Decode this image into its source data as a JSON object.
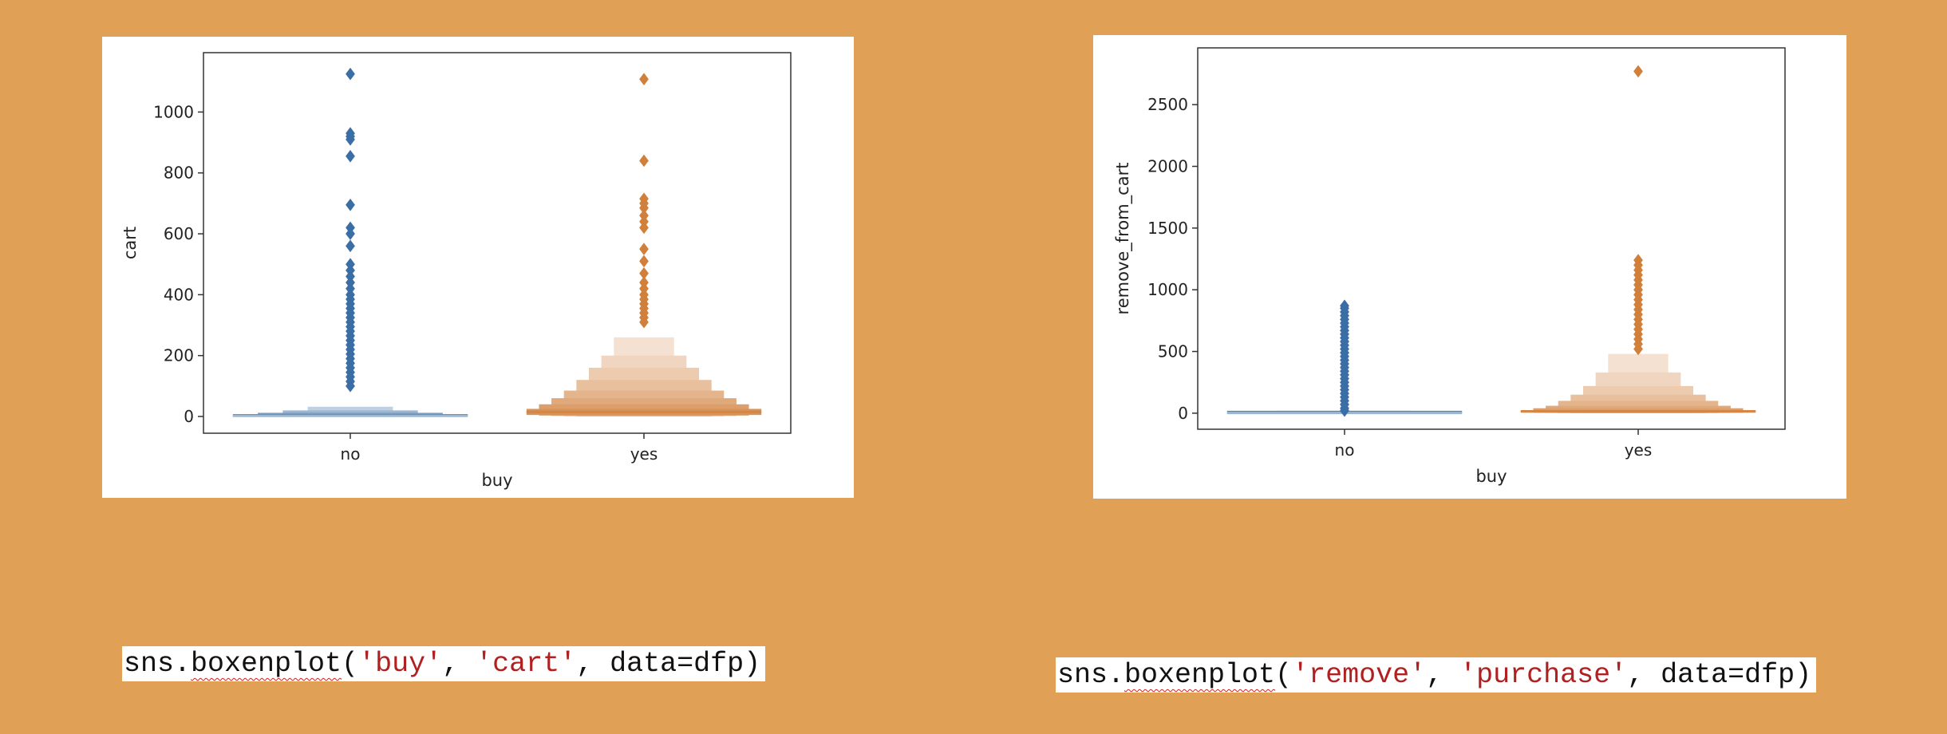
{
  "colors": {
    "background": "#E0A055",
    "no_series": "#3A6EA5",
    "yes_series": "#D1803C",
    "code_string": "#b02020",
    "spellcheck": "#d02020"
  },
  "chart_data": [
    {
      "type": "boxen",
      "xlabel": "buy",
      "ylabel": "cart",
      "categories": [
        "no",
        "yes"
      ],
      "ylim": [
        -55,
        1195
      ],
      "yticks": [
        0,
        200,
        400,
        600,
        800,
        1000
      ],
      "ytick_labels": [
        "0",
        "200",
        "400",
        "600",
        "800",
        "1000"
      ],
      "grid": false,
      "series": [
        {
          "category": "no",
          "median": 2,
          "levels": [
            [
              0,
              5
            ],
            [
              0,
              12
            ],
            [
              0,
              20
            ],
            [
              0,
              32
            ]
          ],
          "outliers": [
            1125,
            930,
            920,
            910,
            855,
            695,
            620,
            600,
            560,
            500,
            480,
            460,
            440,
            420,
            400,
            385,
            370,
            355,
            340,
            325,
            310,
            295,
            280,
            265,
            250,
            235,
            220,
            205,
            190,
            175,
            160,
            145,
            130,
            115,
            100
          ]
        },
        {
          "category": "yes",
          "median": 15,
          "levels": [
            [
              5,
              25
            ],
            [
              3,
              40
            ],
            [
              2,
              60
            ],
            [
              1,
              85
            ],
            [
              0,
              120
            ],
            [
              0,
              160
            ],
            [
              0,
              200
            ],
            [
              0,
              260
            ]
          ],
          "outliers": [
            1108,
            840,
            715,
            700,
            685,
            660,
            640,
            620,
            550,
            510,
            470,
            440,
            420,
            400,
            385,
            370,
            355,
            340,
            325,
            310
          ]
        }
      ]
    },
    {
      "type": "boxen",
      "xlabel": "buy",
      "ylabel": "remove_from_cart",
      "categories": [
        "no",
        "yes"
      ],
      "ylim": [
        -130,
        2960
      ],
      "yticks": [
        0,
        500,
        1000,
        1500,
        2000,
        2500
      ],
      "ytick_labels": [
        "0",
        "500",
        "1000",
        "1500",
        "2000",
        "2500"
      ],
      "grid": false,
      "series": [
        {
          "category": "no",
          "median": 2,
          "levels": [
            [
              0,
              5
            ],
            [
              0,
              10
            ]
          ],
          "outliers": [
            870,
            850,
            820,
            790,
            760,
            730,
            700,
            670,
            640,
            610,
            580,
            550,
            520,
            490,
            460,
            430,
            400,
            370,
            340,
            310,
            280,
            250,
            220,
            190,
            160,
            130,
            100,
            70,
            40,
            20
          ]
        },
        {
          "category": "yes",
          "median": 15,
          "levels": [
            [
              5,
              25
            ],
            [
              3,
              40
            ],
            [
              2,
              60
            ],
            [
              1,
              100
            ],
            [
              0,
              150
            ],
            [
              0,
              220
            ],
            [
              0,
              330
            ],
            [
              0,
              480
            ]
          ],
          "outliers": [
            2770,
            1240,
            1200,
            1160,
            1120,
            1080,
            1040,
            1000,
            960,
            920,
            880,
            840,
            800,
            760,
            720,
            680,
            640,
            600,
            560,
            520
          ]
        }
      ]
    }
  ],
  "code": {
    "left": {
      "prefix": "sns.",
      "func": "boxenplot",
      "open": "(",
      "arg1": "'buy'",
      "sep1": ", ",
      "arg2": "'cart'",
      "rest": ", data=dfp)"
    },
    "right": {
      "prefix": "sns.",
      "func": "boxenplot",
      "open": "(",
      "arg1": "'remove'",
      "sep1": ", ",
      "arg2": "'purchase'",
      "rest": ", data=dfp)"
    }
  }
}
